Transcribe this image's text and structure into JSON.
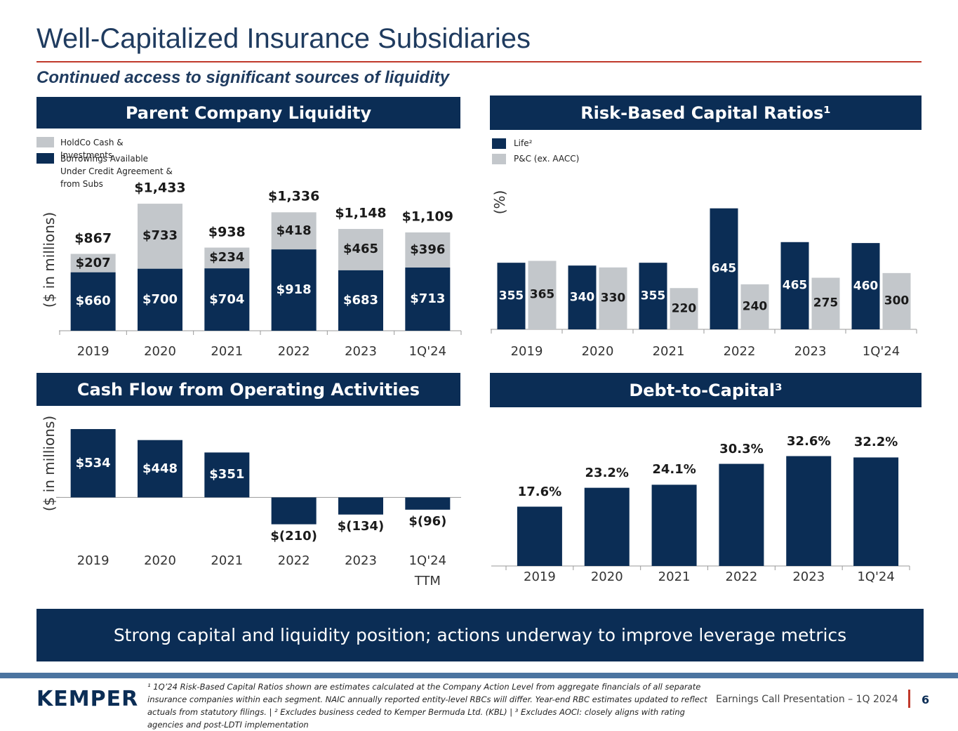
{
  "title": "Well-Capitalized Insurance Subsidiaries",
  "subtitle": "Continued access to significant sources of liquidity",
  "chart_data": [
    {
      "type": "stacked_bar",
      "title": "Parent Company Liquidity",
      "y_label": "($ in millions)",
      "categories": [
        "2019",
        "2020",
        "2021",
        "2022",
        "2023",
        "1Q'24"
      ],
      "series": [
        {
          "name": "Borrowings Available Under Credit Agreement & from Subs",
          "color": "#0b2d55",
          "values": [
            660,
            700,
            704,
            918,
            683,
            713
          ],
          "value_labels": [
            "$660",
            "$700",
            "$704",
            "$918",
            "$683",
            "$713"
          ]
        },
        {
          "name": "HoldCo Cash & Investments",
          "color": "#c3c7cb",
          "values": [
            207,
            733,
            234,
            418,
            465,
            396
          ],
          "value_labels": [
            "$207",
            "$733",
            "$234",
            "$418",
            "$465",
            "$396"
          ]
        }
      ],
      "totals": [
        867,
        1433,
        938,
        1336,
        1148,
        1109
      ],
      "total_labels": [
        "$867",
        "$1,433",
        "$938",
        "$1,336",
        "$1,148",
        "$1,109"
      ],
      "ylim": [
        0,
        1600
      ]
    },
    {
      "type": "grouped_bar",
      "title": "Risk-Based Capital Ratios¹",
      "y_label": "(%)",
      "categories": [
        "2019",
        "2020",
        "2021",
        "2022",
        "2023",
        "1Q'24"
      ],
      "series": [
        {
          "name": "Life²",
          "color": "#0b2d55",
          "values": [
            355,
            340,
            355,
            645,
            465,
            460
          ]
        },
        {
          "name": "P&C (ex. AACC)",
          "color": "#c3c7cb",
          "values": [
            365,
            330,
            220,
            240,
            275,
            300
          ]
        }
      ],
      "ylim": [
        0,
        700
      ]
    },
    {
      "type": "bar",
      "title": "Cash Flow from Operating Activities",
      "y_label": "($ in millions)",
      "categories": [
        "2019",
        "2020",
        "2021",
        "2022",
        "2023",
        "1Q'24 TTM"
      ],
      "values": [
        534,
        448,
        351,
        -210,
        -134,
        -96
      ],
      "value_labels": [
        "$534",
        "$448",
        "$351",
        "$(210)",
        "$(134)",
        "$(96)"
      ],
      "color": "#0b2d55",
      "ylim": [
        -300,
        600
      ]
    },
    {
      "type": "bar",
      "title": "Debt-to-Capital³",
      "categories": [
        "2019",
        "2020",
        "2021",
        "2022",
        "2023",
        "1Q'24"
      ],
      "values": [
        17.6,
        23.2,
        24.1,
        30.3,
        32.6,
        32.2
      ],
      "value_labels": [
        "17.6%",
        "23.2%",
        "24.1%",
        "30.3%",
        "32.6%",
        "32.2%"
      ],
      "color": "#0b2d55",
      "ylim": [
        0,
        40
      ]
    }
  ],
  "banner": "Strong capital and liquidity position; actions underway to improve leverage metrics",
  "footnotes": "¹ 1Q’24 Risk-Based Capital Ratios shown are estimates calculated at the Company Action Level from aggregate financials of all separate insurance companies within each segment. NAIC annually reported entity-level RBCs will differ. Year-end RBC estimates updated to reflect actuals from statutory filings. | ² Excludes business ceded to Kemper Bermuda Ltd. (KBL) | ³ Excludes AOCI: closely aligns with rating agencies and post-LDTI implementation",
  "logo": "KEMPER",
  "footer": "Earnings Call Presentation – 1Q 2024",
  "page_number": "6"
}
